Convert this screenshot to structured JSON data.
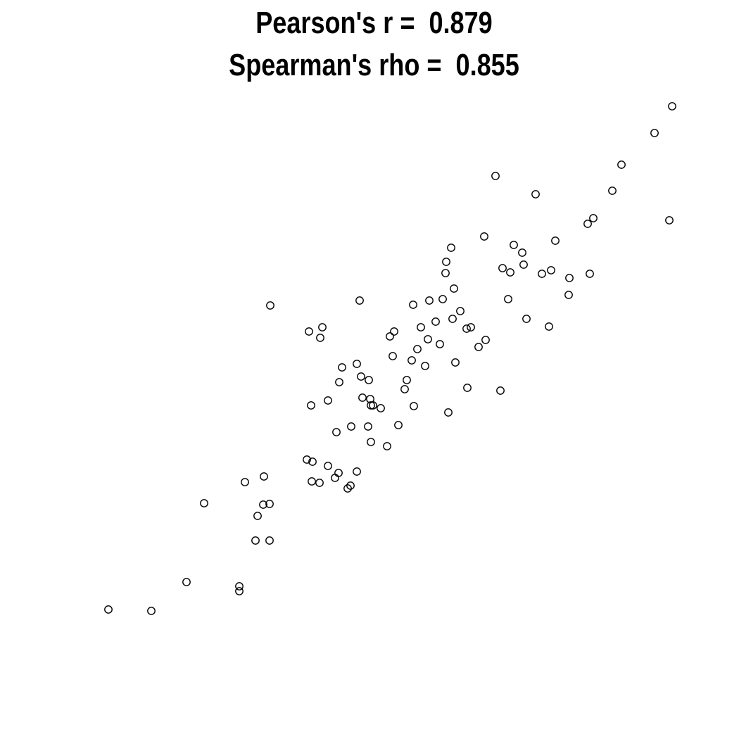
{
  "chart_data": {
    "type": "scatter",
    "title_lines": [
      "Pearson's r =  0.879",
      "Spearman's rho =  0.855"
    ],
    "xlabel": "",
    "ylabel": "",
    "axes_visible": false,
    "grid": false,
    "marker": "open-circle",
    "marker_color": "#000000",
    "points": [
      [
        154,
        866
      ],
      [
        215,
        868
      ],
      [
        265,
        827
      ],
      [
        340,
        833
      ],
      [
        340,
        840
      ],
      [
        290,
        715
      ],
      [
        348,
        685
      ],
      [
        375,
        677
      ],
      [
        366,
        733
      ],
      [
        374,
        717
      ],
      [
        383,
        716
      ],
      [
        363,
        768
      ],
      [
        383,
        768
      ],
      [
        384,
        434
      ],
      [
        439,
        471
      ],
      [
        458,
        465
      ],
      [
        455,
        480
      ],
      [
        442,
        576
      ],
      [
        466,
        569
      ],
      [
        482,
        543
      ],
      [
        486,
        522
      ],
      [
        507,
        517
      ],
      [
        513,
        535
      ],
      [
        524,
        540
      ],
      [
        515,
        565
      ],
      [
        526,
        567
      ],
      [
        527,
        576
      ],
      [
        530,
        576
      ],
      [
        541,
        580
      ],
      [
        478,
        614
      ],
      [
        499,
        606
      ],
      [
        523,
        606
      ],
      [
        527,
        628
      ],
      [
        550,
        634
      ],
      [
        566,
        604
      ],
      [
        436,
        653
      ],
      [
        444,
        656
      ],
      [
        466,
        662
      ],
      [
        481,
        672
      ],
      [
        476,
        679
      ],
      [
        443,
        684
      ],
      [
        454,
        686
      ],
      [
        498,
        690
      ],
      [
        494,
        694
      ],
      [
        507,
        670
      ],
      [
        511,
        427
      ],
      [
        554,
        478
      ],
      [
        560,
        471
      ],
      [
        558,
        506
      ],
      [
        575,
        553
      ],
      [
        578,
        540
      ],
      [
        585,
        512
      ],
      [
        588,
        577
      ],
      [
        593,
        496
      ],
      [
        598,
        465
      ],
      [
        604,
        520
      ],
      [
        608,
        482
      ],
      [
        619,
        457
      ],
      [
        625,
        489
      ],
      [
        587,
        433
      ],
      [
        610,
        427
      ],
      [
        629,
        425
      ],
      [
        645,
        410
      ],
      [
        633,
        388
      ],
      [
        634,
        372
      ],
      [
        641,
        352
      ],
      [
        637,
        586
      ],
      [
        643,
        453
      ],
      [
        647,
        515
      ],
      [
        654,
        442
      ],
      [
        664,
        551
      ],
      [
        663,
        467
      ],
      [
        669,
        465
      ],
      [
        680,
        493
      ],
      [
        690,
        483
      ],
      [
        688,
        336
      ],
      [
        704,
        250
      ],
      [
        711,
        555
      ],
      [
        714,
        381
      ],
      [
        722,
        425
      ],
      [
        725,
        387
      ],
      [
        730,
        348
      ],
      [
        742,
        359
      ],
      [
        744,
        376
      ],
      [
        748,
        453
      ],
      [
        761,
        276
      ],
      [
        770,
        389
      ],
      [
        780,
        464
      ],
      [
        783,
        384
      ],
      [
        789,
        342
      ],
      [
        808,
        419
      ],
      [
        809,
        395
      ],
      [
        838,
        389
      ],
      [
        835,
        318
      ],
      [
        843,
        310
      ],
      [
        870,
        271
      ],
      [
        883,
        234
      ],
      [
        930,
        189
      ],
      [
        955,
        151
      ],
      [
        951,
        313
      ]
    ]
  }
}
